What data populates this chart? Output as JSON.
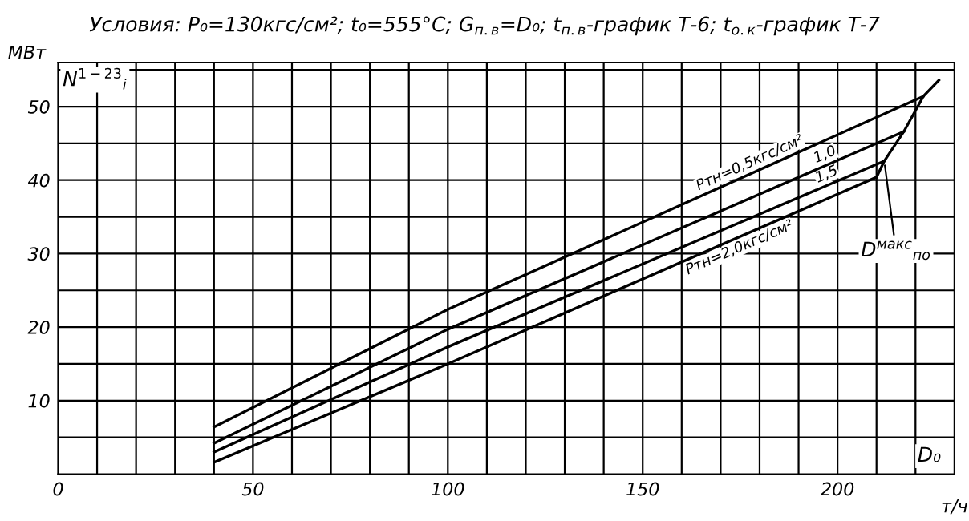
{
  "chart_data": {
    "type": "line",
    "title": "Условия: P₀=130кгс/см²; t₀=555°C; G$_{п.в}$=D₀; t$_{п.в}$-график Т-6; t$_{о.к}$-график Т-7",
    "xlabel": "т/ч",
    "ylabel": "МВт",
    "annotations": [
      "N$^{1−23}$$_{i}$",
      "D₀",
      {
        "text": "D$^{макс}$$_{по}$",
        "x": 212,
        "y": 42.6
      }
    ],
    "xlim": [
      0,
      230
    ],
    "ylim": [
      0,
      56
    ],
    "xticks": [
      0,
      {
        "value": 10,
        "label": null
      },
      {
        "value": 20,
        "label": null
      },
      {
        "value": 30,
        "label": null
      },
      {
        "value": 40,
        "label": null
      },
      50,
      {
        "value": 60,
        "label": null
      },
      {
        "value": 70,
        "label": null
      },
      {
        "value": 80,
        "label": null
      },
      {
        "value": 90,
        "label": null
      },
      100,
      {
        "value": 110,
        "label": null
      },
      {
        "value": 120,
        "label": null
      },
      {
        "value": 130,
        "label": null
      },
      {
        "value": 140,
        "label": null
      },
      150,
      {
        "value": 160,
        "label": null
      },
      {
        "value": 170,
        "label": null
      },
      {
        "value": 180,
        "label": null
      },
      {
        "value": 190,
        "label": null
      },
      200,
      {
        "value": 210,
        "label": null
      },
      {
        "value": 220,
        "label": null
      }
    ],
    "yticks": [
      {
        "value": 5,
        "label": null
      },
      10,
      {
        "value": 15,
        "label": null
      },
      20,
      {
        "value": 25,
        "label": null
      },
      30,
      {
        "value": 35,
        "label": null
      },
      40,
      {
        "value": 45,
        "label": null
      },
      50,
      {
        "value": 55,
        "label": null
      }
    ],
    "grid": true,
    "legend": false,
    "marker": "none",
    "line_style": "solid",
    "series": [
      {
        "name": "Pтн=0,5кгс/см²",
        "color": "#000000",
        "x": [
          40,
          100,
          222
        ],
        "values": [
          6.4,
          22.4,
          51.4
        ]
      },
      {
        "name": "1,0",
        "color": "#000000",
        "x": [
          40,
          100,
          217
        ],
        "values": [
          4.2,
          19.7,
          46.6
        ]
      },
      {
        "name": "1,5",
        "color": "#000000",
        "x": [
          40,
          100,
          212
        ],
        "values": [
          3.0,
          17.3,
          42.6
        ]
      },
      {
        "name": "Pтн=2,0кгс/см²",
        "color": "#000000",
        "x": [
          40,
          100,
          210
        ],
        "values": [
          1.6,
          15.0,
          40.4
        ]
      },
      {
        "color": "#000000",
        "x": [
          210,
          212,
          217,
          222,
          226
        ],
        "values": [
          40.4,
          42.6,
          46.6,
          51.4,
          53.6
        ]
      }
    ]
  }
}
